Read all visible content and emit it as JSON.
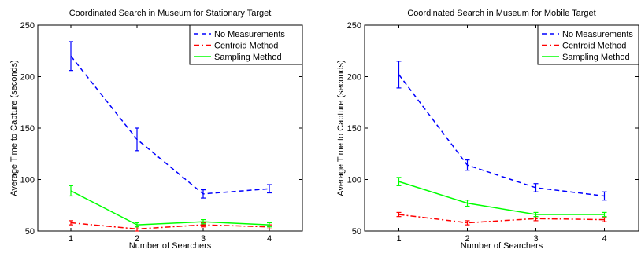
{
  "chart_data": [
    {
      "type": "line",
      "title": "Coordinated Search in Museum for Stationary Target",
      "xlabel": "Number of Searchers",
      "ylabel": "Average Time to Capture (seconds)",
      "x": [
        1,
        2,
        3,
        4
      ],
      "xticks": [
        "1",
        "2",
        "3",
        "4"
      ],
      "xlim": [
        0.5,
        4.5
      ],
      "ylim": [
        50,
        250
      ],
      "yticks": [
        "50",
        "100",
        "150",
        "200",
        "250"
      ],
      "legend_position": "top-right",
      "series": [
        {
          "name": "No Measurements",
          "color": "#0000ff",
          "dash": "dashed",
          "values": [
            220,
            139,
            86,
            91
          ],
          "error": [
            14,
            11,
            4,
            4
          ]
        },
        {
          "name": "Centroid Method",
          "color": "#ff0000",
          "dash": "dash-dot",
          "values": [
            58,
            52,
            56,
            54
          ],
          "error": [
            2,
            2,
            2,
            2
          ]
        },
        {
          "name": "Sampling Method",
          "color": "#00ff00",
          "dash": "solid",
          "values": [
            89,
            56,
            59,
            56
          ],
          "error": [
            5,
            2,
            2,
            2
          ]
        }
      ]
    },
    {
      "type": "line",
      "title": "Coordinated Search in Museum for Mobile Target",
      "xlabel": "Number of Searchers",
      "ylabel": "Average Time to Capture (seconds)",
      "x": [
        1,
        2,
        3,
        4
      ],
      "xticks": [
        "1",
        "2",
        "3",
        "4"
      ],
      "xlim": [
        0.5,
        4.5
      ],
      "ylim": [
        50,
        250
      ],
      "yticks": [
        "50",
        "100",
        "150",
        "200",
        "250"
      ],
      "legend_position": "top-right",
      "series": [
        {
          "name": "No Measurements",
          "color": "#0000ff",
          "dash": "dashed",
          "values": [
            202,
            114,
            92,
            84
          ],
          "error": [
            13,
            5,
            4,
            4
          ]
        },
        {
          "name": "Centroid Method",
          "color": "#ff0000",
          "dash": "dash-dot",
          "values": [
            66,
            58,
            62,
            61
          ],
          "error": [
            2,
            2,
            2,
            2
          ]
        },
        {
          "name": "Sampling Method",
          "color": "#00ff00",
          "dash": "solid",
          "values": [
            98,
            77,
            66,
            66
          ],
          "error": [
            4,
            3,
            2,
            2
          ]
        }
      ]
    }
  ]
}
